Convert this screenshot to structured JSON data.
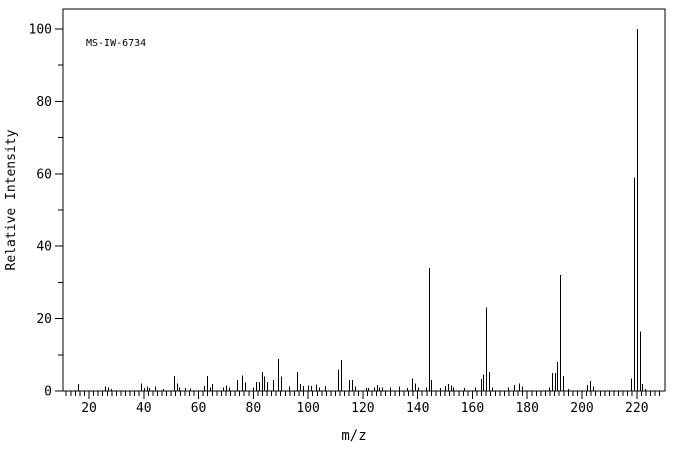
{
  "colors": {
    "foreground": "#000000",
    "background": "#ffffff"
  },
  "chart_data": {
    "type": "bar",
    "subtype": "mass-spectrum-stick-plot",
    "annotation": "MS-IW-6734",
    "xlabel": "m/z",
    "ylabel": "Relative Intensity",
    "grid": false,
    "legend": false,
    "x_axis": {
      "min": 10.5,
      "max": 230.3,
      "major_tick_labels": [
        20,
        40,
        60,
        80,
        100,
        120,
        140,
        160,
        180,
        200,
        220
      ],
      "major_tick_step": 20,
      "minor_intervals_per_major": 12
    },
    "y_axis": {
      "min": 0,
      "max": 100,
      "major_tick_labels": [
        0,
        20,
        40,
        60,
        80,
        100
      ],
      "minor_tick_step": 10
    },
    "peaks_format": [
      "m_over_z",
      "relative_intensity_percent"
    ],
    "peaks": [
      [
        16,
        1.9
      ],
      [
        26,
        1.2
      ],
      [
        27,
        1.0
      ],
      [
        28,
        0.6
      ],
      [
        39,
        2.1
      ],
      [
        40,
        0.8
      ],
      [
        41,
        1.2
      ],
      [
        42,
        0.8
      ],
      [
        44,
        1.3
      ],
      [
        47,
        0.5
      ],
      [
        51,
        4.2
      ],
      [
        52,
        2.1
      ],
      [
        53,
        1.0
      ],
      [
        55,
        0.8
      ],
      [
        57,
        0.7
      ],
      [
        62,
        1.4
      ],
      [
        63,
        4.1
      ],
      [
        64,
        1.0
      ],
      [
        65,
        2.0
      ],
      [
        69,
        1.0
      ],
      [
        70,
        1.5
      ],
      [
        71,
        1.0
      ],
      [
        74,
        3.0
      ],
      [
        76,
        4.3
      ],
      [
        77,
        2.3
      ],
      [
        80,
        1.0
      ],
      [
        81,
        2.5
      ],
      [
        82,
        2.5
      ],
      [
        83,
        5.3
      ],
      [
        84,
        4.0
      ],
      [
        85,
        2.5
      ],
      [
        87,
        3.0
      ],
      [
        89,
        8.8
      ],
      [
        90,
        4.0
      ],
      [
        93,
        1.2
      ],
      [
        96,
        5.3
      ],
      [
        97,
        2.0
      ],
      [
        98,
        1.4
      ],
      [
        100,
        1.5
      ],
      [
        101,
        1.4
      ],
      [
        103,
        1.8
      ],
      [
        104,
        1.0
      ],
      [
        106,
        1.4
      ],
      [
        111,
        6.0
      ],
      [
        112,
        8.5
      ],
      [
        115,
        3.0
      ],
      [
        116,
        3.0
      ],
      [
        117,
        1.2
      ],
      [
        121,
        0.8
      ],
      [
        122,
        0.8
      ],
      [
        124,
        1.0
      ],
      [
        125,
        1.6
      ],
      [
        126,
        1.0
      ],
      [
        127,
        1.0
      ],
      [
        130,
        1.0
      ],
      [
        133,
        1.3
      ],
      [
        136,
        0.8
      ],
      [
        138,
        3.5
      ],
      [
        139,
        2.1
      ],
      [
        140,
        1.0
      ],
      [
        143,
        1.0
      ],
      [
        144,
        34.0
      ],
      [
        145,
        3.0
      ],
      [
        148,
        0.8
      ],
      [
        150,
        1.4
      ],
      [
        151,
        2.0
      ],
      [
        152,
        1.5
      ],
      [
        153,
        1.0
      ],
      [
        157,
        0.8
      ],
      [
        161,
        1.0
      ],
      [
        163,
        3.3
      ],
      [
        164,
        4.6
      ],
      [
        165,
        23.0
      ],
      [
        166,
        5.3
      ],
      [
        167,
        1.0
      ],
      [
        173,
        1.0
      ],
      [
        175,
        1.7
      ],
      [
        177,
        2.1
      ],
      [
        178,
        1.2
      ],
      [
        188,
        1.0
      ],
      [
        189,
        5.0
      ],
      [
        190,
        5.0
      ],
      [
        191,
        8.0
      ],
      [
        192,
        32.0
      ],
      [
        193,
        4.2
      ],
      [
        195,
        0.5
      ],
      [
        202,
        1.7
      ],
      [
        203,
        2.8
      ],
      [
        204,
        1.2
      ],
      [
        218,
        3.5
      ],
      [
        219,
        59.0
      ],
      [
        220,
        100.0
      ],
      [
        221,
        16.5
      ],
      [
        222,
        2.0
      ],
      [
        223,
        0.5
      ]
    ]
  }
}
